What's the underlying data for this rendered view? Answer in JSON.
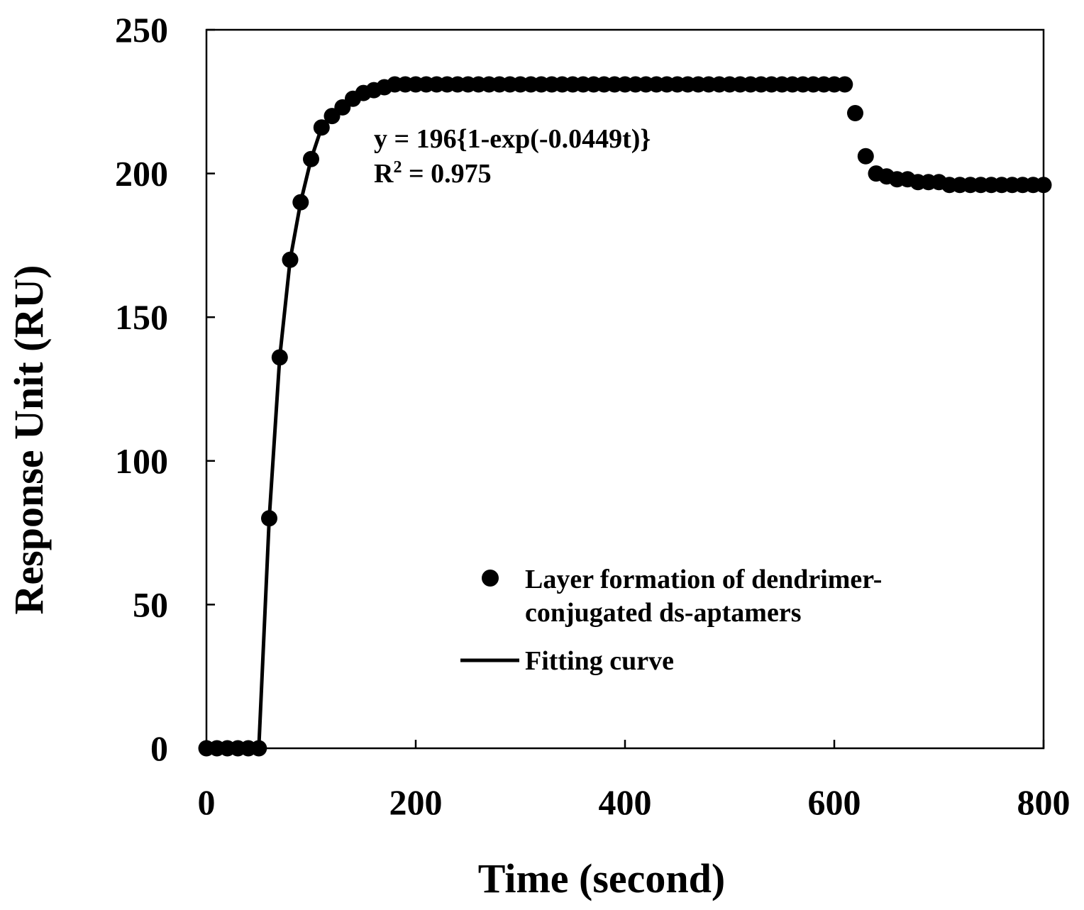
{
  "chart_data": {
    "type": "scatter",
    "title": "",
    "xlabel": "Time (second)",
    "ylabel": "Response Unit (RU)",
    "xlim": [
      0,
      800
    ],
    "ylim": [
      0,
      250
    ],
    "xticks": [
      "0",
      "200",
      "400",
      "600",
      "800"
    ],
    "yticks": [
      "0",
      "50",
      "100",
      "150",
      "200",
      "250"
    ],
    "grid": false,
    "legend_position": "bottom-right",
    "annotation": {
      "equation": "y = 196{1-exp(-0.0449t)}",
      "r2_prefix": "R",
      "r2_sup": "2",
      "r2_value": " = 0.975"
    },
    "series": [
      {
        "name": "Layer formation of dendrimer-conjugated ds-aptamers",
        "legend_lines": [
          "Layer formation of dendrimer-",
          "conjugated ds-aptamers"
        ],
        "kind": "scatter",
        "color": "#000000",
        "x": [
          0,
          10,
          20,
          30,
          40,
          50,
          60,
          70,
          80,
          90,
          100,
          110,
          120,
          130,
          140,
          150,
          160,
          170,
          180,
          190,
          200,
          210,
          220,
          230,
          240,
          250,
          260,
          270,
          280,
          290,
          300,
          310,
          320,
          330,
          340,
          350,
          360,
          370,
          380,
          390,
          400,
          410,
          420,
          430,
          440,
          450,
          460,
          470,
          480,
          490,
          500,
          510,
          520,
          530,
          540,
          550,
          560,
          570,
          580,
          590,
          600,
          610,
          620,
          630,
          640,
          650,
          660,
          670,
          680,
          690,
          700,
          710,
          720,
          730,
          740,
          750,
          760,
          770,
          780,
          790,
          800
        ],
        "y": [
          0,
          0,
          0,
          0,
          0,
          0,
          80,
          136,
          170,
          190,
          205,
          216,
          220,
          223,
          226,
          228,
          229,
          230,
          231,
          231,
          231,
          231,
          231,
          231,
          231,
          231,
          231,
          231,
          231,
          231,
          231,
          231,
          231,
          231,
          231,
          231,
          231,
          231,
          231,
          231,
          231,
          231,
          231,
          231,
          231,
          231,
          231,
          231,
          231,
          231,
          231,
          231,
          231,
          231,
          231,
          231,
          231,
          231,
          231,
          231,
          231,
          231,
          221,
          206,
          200,
          199,
          198,
          198,
          197,
          197,
          197,
          196,
          196,
          196,
          196,
          196,
          196,
          196,
          196,
          196,
          196
        ]
      },
      {
        "name": "Fitting curve",
        "kind": "line",
        "color": "#000000",
        "x": [
          0,
          50,
          60,
          70,
          80,
          90,
          100,
          110,
          120,
          130,
          140,
          150,
          160,
          170,
          180
        ],
        "y": [
          0,
          0,
          80,
          136,
          170,
          190,
          205,
          216,
          220,
          223,
          226,
          228,
          229,
          230,
          231
        ]
      }
    ]
  }
}
